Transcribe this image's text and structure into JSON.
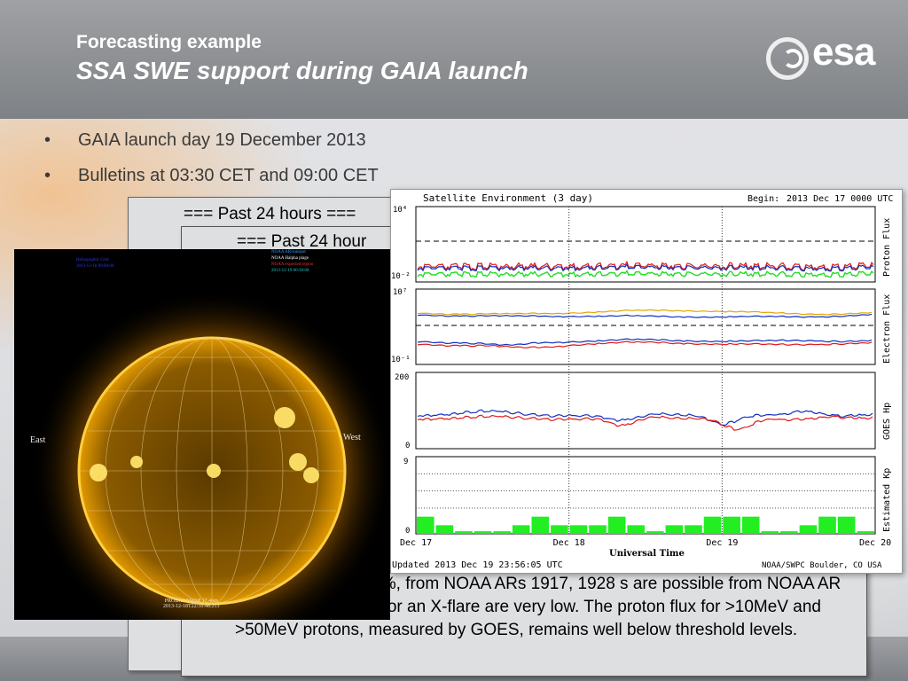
{
  "header": {
    "kicker": "Forecasting example",
    "title": "SSA SWE support during GAIA launch",
    "logo_text": "esa",
    "logo_icon": "esa-swirl-icon"
  },
  "bullets": [
    "GAIA launch day 19 December 2013",
    "Bulletins at 03:30 CET and 09:00 CET"
  ],
  "bulletin_back": {
    "header": "=== Past 24 hours ==="
  },
  "bulletin_front": {
    "header": "=== Past 24 hour",
    "body": "M-flares, around 30%, from NOAA ARs 1917, 1928 s are possible from NOAA AR 1931. The chances for an X-flare are very low. The proton flux for >10MeV and >50MeV protons, measured by GOES, remains well below threshold levels."
  },
  "sun_image": {
    "east_label": "East",
    "west_label": "West",
    "caption_line1": "PROBA2/SWAP 17.4nm",
    "caption_line2": "2013-12-18T22:50:48.213",
    "legend_left": [
      "Heliographic Grid",
      "2013-12-18 00:00:00"
    ],
    "legend_right": [
      {
        "text": "NOAA AR/sunspot",
        "color": "#3aa0ff"
      },
      {
        "text": "NOAA Halpha plage",
        "color": "#ffffff"
      },
      {
        "text": "NOAA expected region",
        "color": "#ff3030"
      },
      {
        "text": "2013-12-19 00:30:00",
        "color": "#26c8c8"
      }
    ],
    "colors": {
      "corona": "#f0a400",
      "disk": "#3a2600"
    }
  },
  "satellite_plot": {
    "title": "Satellite Environment (3 day)",
    "begin_label": "Begin:",
    "begin_value": "2013 Dec 17 0000 UTC",
    "updated": "Updated 2013 Dec 19 23:56:05 UTC",
    "source": "NOAA/SWPC Boulder, CO USA",
    "x_label": "Universal Time",
    "x_ticks": [
      "Dec 17",
      "Dec 18",
      "Dec 19",
      "Dec 20"
    ],
    "panels": [
      {
        "name": "Proton Flux",
        "y_top": "10⁴",
        "y_bottom": "10⁻²"
      },
      {
        "name": "Electron Flux",
        "y_top": "10⁷",
        "y_bottom": "10⁻¹"
      },
      {
        "name": "GOES Hp",
        "y_top": "200",
        "y_bottom": "0"
      },
      {
        "name": "Estimated Kp",
        "y_top": "9",
        "y_bottom": "0"
      }
    ]
  },
  "chart_data": {
    "type": "bar",
    "title": "Estimated Kp",
    "ylabel": "Estimated Kp",
    "ylim": [
      0,
      9
    ],
    "categories": [
      "Dec 17 00",
      "Dec 17 03",
      "Dec 17 06",
      "Dec 17 09",
      "Dec 17 12",
      "Dec 17 15",
      "Dec 17 18",
      "Dec 17 21",
      "Dec 18 00",
      "Dec 18 03",
      "Dec 18 06",
      "Dec 18 09",
      "Dec 18 12",
      "Dec 18 15",
      "Dec 18 18",
      "Dec 18 21",
      "Dec 19 00",
      "Dec 19 03",
      "Dec 19 06",
      "Dec 19 09",
      "Dec 19 12",
      "Dec 19 15",
      "Dec 19 18",
      "Dec 19 21"
    ],
    "values": [
      2,
      1,
      0.3,
      0.3,
      0.3,
      1,
      2,
      1,
      1,
      1,
      2,
      1,
      0.3,
      1,
      1,
      2,
      2,
      2,
      0.3,
      0.3,
      1,
      2,
      2,
      0.3
    ],
    "bar_color": "#22ee22"
  }
}
